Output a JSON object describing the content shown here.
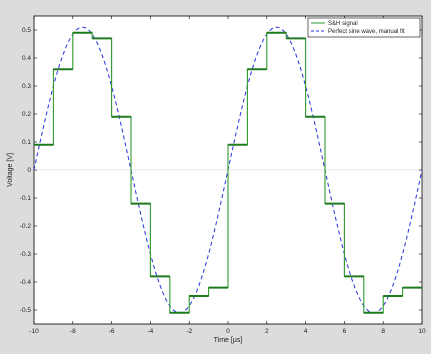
{
  "chart_data": {
    "type": "line",
    "xlabel": "Time [µs]",
    "ylabel": "Voltage [V]",
    "xlim": [
      -10,
      10
    ],
    "ylim": [
      -0.55,
      0.55
    ],
    "xticks": [
      -10,
      -8,
      -6,
      -4,
      -2,
      0,
      2,
      4,
      6,
      8,
      10
    ],
    "yticks": [
      -0.5,
      -0.4,
      -0.3,
      -0.2,
      -0.1,
      0,
      0.1,
      0.2,
      0.3,
      0.4,
      0.5
    ],
    "grid": false,
    "legend_position": "top-right",
    "series": [
      {
        "name": "S&H signal",
        "style": "solid-step",
        "color": "#2e9a2e",
        "x": [
          -10,
          -9,
          -8,
          -7,
          -6,
          -5,
          -4,
          -3,
          -2,
          -1,
          0,
          1,
          2,
          3,
          4,
          5,
          6,
          7,
          8,
          9,
          10
        ],
        "values": [
          0.09,
          0.36,
          0.49,
          0.47,
          0.19,
          -0.12,
          -0.38,
          -0.51,
          -0.45,
          -0.42,
          0.09,
          0.36,
          0.49,
          0.47,
          0.19,
          -0.12,
          -0.38,
          -0.51,
          -0.45,
          -0.42,
          -0.42
        ]
      },
      {
        "name": "Perfect sine wave, manual fit",
        "style": "dashed",
        "color": "#2233dd",
        "amplitude": 0.51,
        "period": 10,
        "phase_zero_crossing": -10
      }
    ]
  }
}
